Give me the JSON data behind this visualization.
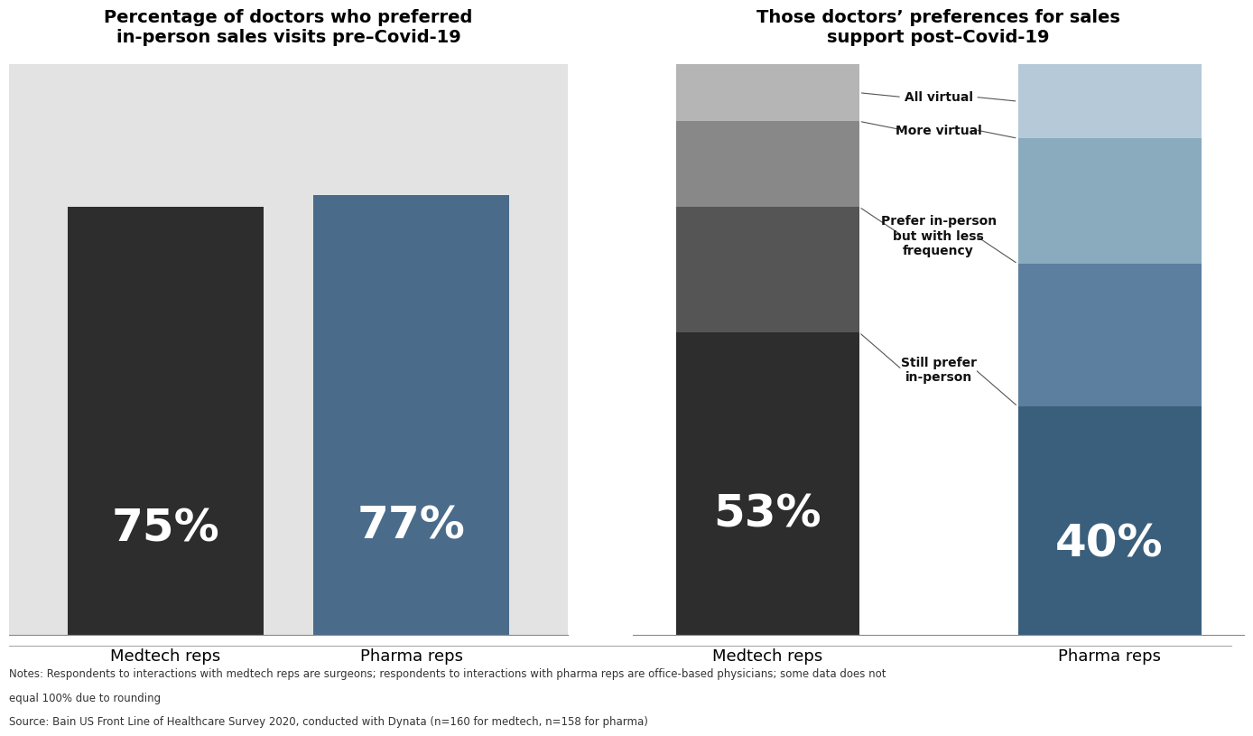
{
  "left_title": "Percentage of doctors who preferred\nin-person sales visits pre–Covid-19",
  "right_title": "Those doctors’ preferences for sales\nsupport post–Covid-19",
  "left_bars": {
    "categories": [
      "Medtech reps",
      "Pharma reps"
    ],
    "values": [
      75,
      77
    ],
    "colors": [
      "#2d2d2d",
      "#4a6b8a"
    ],
    "labels": [
      "75%",
      "77%"
    ]
  },
  "right_bars": {
    "categories": [
      "Medtech reps",
      "Pharma reps"
    ],
    "medtech_values": [
      53,
      22,
      15,
      10
    ],
    "pharma_values": [
      40,
      25,
      22,
      13
    ],
    "medtech_colors": [
      "#2d2d2d",
      "#555555",
      "#888888",
      "#b5b5b5"
    ],
    "pharma_colors": [
      "#3a5f7d",
      "#5c7fa0",
      "#8aaabe",
      "#b5c9d8"
    ]
  },
  "left_bg_color": "#e3e3e3",
  "right_bg_color": "#ffffff",
  "note_line1": "Notes: Respondents to interactions with medtech reps are surgeons; respondents to interactions with pharma reps are office-based physicians; some data does not",
  "note_line2": "equal 100% due to rounding",
  "source_line": "Source: Bain US Front Line of Healthcare Survey 2020, conducted with Dynata (n=160 for medtech, n=158 for pharma)"
}
